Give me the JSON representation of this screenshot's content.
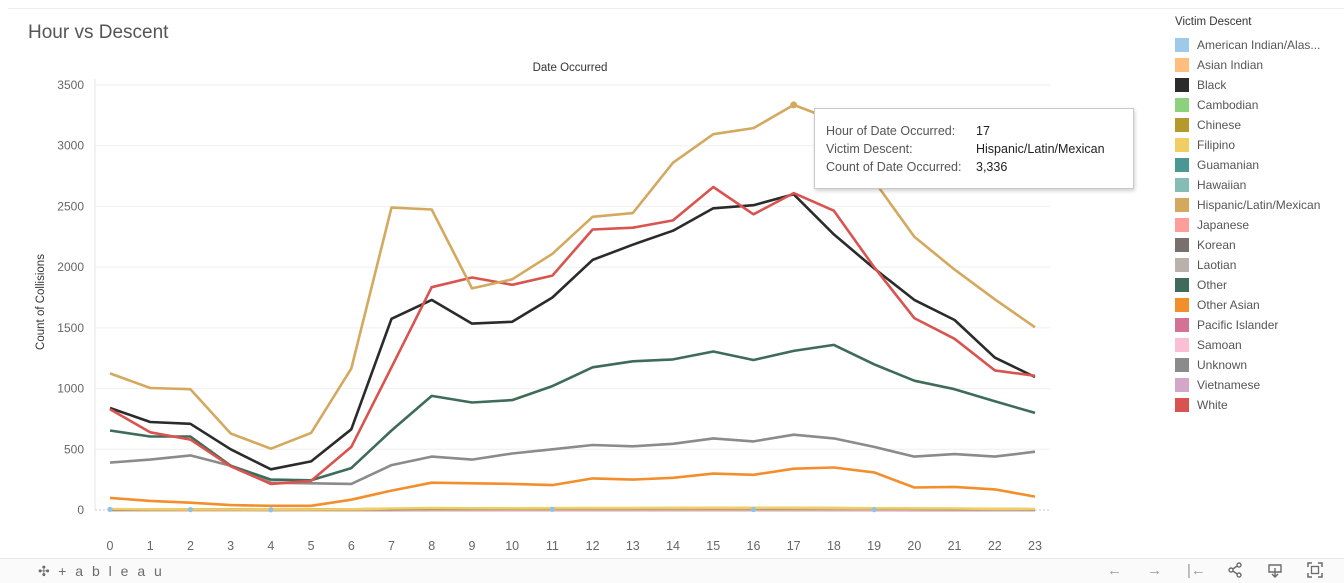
{
  "title": "Hour vs Descent",
  "tooltip": {
    "rows": [
      {
        "label": "Hour of Date Occurred:",
        "value": "17"
      },
      {
        "label": "Victim Descent:",
        "value": "Hispanic/Latin/Mexican"
      },
      {
        "label": "Count of Date Occurred:",
        "value": "3,336"
      }
    ]
  },
  "legend_title": "Victim Descent",
  "footer": {
    "brand": "+ a b l e a u",
    "icons": [
      "undo-icon",
      "redo-icon",
      "revert-icon",
      "share-icon",
      "download-icon",
      "fullscreen-icon"
    ]
  },
  "chart_data": {
    "type": "line",
    "header": "Date Occurred",
    "ylabel": "Count of Collisions",
    "xlabel": "",
    "x": [
      0,
      1,
      2,
      3,
      4,
      5,
      6,
      7,
      8,
      9,
      10,
      11,
      12,
      13,
      14,
      15,
      16,
      17,
      18,
      19,
      20,
      21,
      22,
      23
    ],
    "ylim": [
      0,
      3500
    ],
    "yticks": [
      0,
      500,
      1000,
      1500,
      2000,
      2500,
      3000,
      3500
    ],
    "gridlines": true,
    "legend_position": "right",
    "highlight": {
      "series": "Hispanic/Latin/Mexican",
      "x": 17,
      "y": 3336
    },
    "series": [
      {
        "name": "American Indian/Alaskan Native",
        "legend_label": "American Indian/Alas...",
        "color": "#9ecae9",
        "values": [
          5,
          4,
          3,
          3,
          2,
          2,
          3,
          4,
          4,
          4,
          4,
          5,
          5,
          5,
          4,
          5,
          4,
          5,
          4,
          3,
          3,
          3,
          2,
          2
        ]
      },
      {
        "name": "Asian Indian",
        "color": "#ffbe7d",
        "values": [
          3,
          3,
          2,
          2,
          2,
          2,
          3,
          4,
          5,
          5,
          5,
          6,
          6,
          6,
          6,
          6,
          6,
          6,
          6,
          5,
          5,
          4,
          4,
          3
        ]
      },
      {
        "name": "Black",
        "color": "#2b2b2b",
        "values": [
          840,
          725,
          710,
          500,
          335,
          400,
          665,
          1575,
          1730,
          1535,
          1550,
          1750,
          2060,
          2185,
          2300,
          2485,
          2510,
          2600,
          2270,
          1990,
          1730,
          1565,
          1255,
          1095
        ]
      },
      {
        "name": "Cambodian",
        "color": "#8cd17d",
        "values": [
          1,
          1,
          1,
          1,
          0,
          0,
          1,
          1,
          2,
          2,
          2,
          2,
          2,
          2,
          2,
          2,
          2,
          2,
          2,
          2,
          1,
          1,
          1,
          1
        ]
      },
      {
        "name": "Chinese",
        "color": "#b6992d",
        "values": [
          4,
          4,
          3,
          3,
          3,
          3,
          5,
          8,
          10,
          10,
          11,
          12,
          12,
          13,
          14,
          14,
          13,
          14,
          13,
          12,
          10,
          9,
          8,
          6
        ]
      },
      {
        "name": "Filipino",
        "color": "#f1ce63",
        "values": [
          8,
          6,
          5,
          4,
          3,
          4,
          6,
          12,
          16,
          14,
          14,
          15,
          16,
          16,
          17,
          18,
          17,
          18,
          16,
          14,
          13,
          12,
          10,
          8
        ]
      },
      {
        "name": "Guamanian",
        "color": "#499894",
        "values": [
          1,
          1,
          0,
          0,
          0,
          0,
          1,
          1,
          1,
          1,
          1,
          1,
          1,
          1,
          1,
          1,
          1,
          1,
          1,
          1,
          1,
          1,
          1,
          1
        ]
      },
      {
        "name": "Hawaiian",
        "color": "#86bcb6",
        "values": [
          1,
          1,
          0,
          0,
          0,
          0,
          1,
          1,
          1,
          1,
          1,
          1,
          1,
          1,
          1,
          1,
          1,
          1,
          1,
          1,
          1,
          1,
          1,
          1
        ]
      },
      {
        "name": "Hispanic/Latin/Mexican",
        "color": "#d4a95e",
        "values": [
          1125,
          1005,
          995,
          630,
          505,
          635,
          1165,
          2490,
          2475,
          1825,
          1900,
          2110,
          2415,
          2445,
          2860,
          3095,
          3145,
          3336,
          3210,
          2710,
          2250,
          1980,
          1735,
          1505
        ]
      },
      {
        "name": "Japanese",
        "color": "#ff9d9a",
        "values": [
          2,
          2,
          1,
          1,
          1,
          1,
          2,
          3,
          4,
          4,
          4,
          4,
          5,
          5,
          5,
          5,
          5,
          5,
          5,
          4,
          4,
          3,
          3,
          2
        ]
      },
      {
        "name": "Korean",
        "color": "#79706e",
        "values": [
          5,
          4,
          4,
          3,
          2,
          3,
          5,
          9,
          12,
          11,
          12,
          13,
          14,
          14,
          15,
          16,
          15,
          16,
          15,
          13,
          11,
          10,
          8,
          6
        ]
      },
      {
        "name": "Laotian",
        "color": "#bab0ac",
        "values": [
          0,
          0,
          0,
          0,
          0,
          0,
          0,
          1,
          1,
          1,
          1,
          1,
          1,
          1,
          1,
          1,
          1,
          1,
          1,
          1,
          1,
          0,
          0,
          0
        ]
      },
      {
        "name": "Other",
        "color": "#3e6b5a",
        "values": [
          655,
          605,
          605,
          365,
          250,
          245,
          345,
          655,
          940,
          885,
          905,
          1020,
          1175,
          1225,
          1240,
          1305,
          1235,
          1310,
          1360,
          1200,
          1065,
          995,
          895,
          800
        ]
      },
      {
        "name": "Other Asian",
        "color": "#f28e2b",
        "values": [
          100,
          75,
          60,
          40,
          35,
          35,
          85,
          160,
          225,
          220,
          215,
          205,
          260,
          250,
          265,
          300,
          290,
          340,
          350,
          310,
          185,
          190,
          170,
          110
        ]
      },
      {
        "name": "Pacific Islander",
        "color": "#d37295",
        "values": [
          1,
          1,
          1,
          0,
          0,
          0,
          1,
          1,
          2,
          2,
          2,
          2,
          2,
          2,
          2,
          2,
          2,
          2,
          2,
          2,
          1,
          1,
          1,
          1
        ]
      },
      {
        "name": "Samoan",
        "color": "#fabfd2",
        "values": [
          0,
          0,
          0,
          0,
          0,
          0,
          0,
          1,
          1,
          1,
          1,
          1,
          1,
          1,
          1,
          1,
          1,
          1,
          1,
          1,
          0,
          0,
          0,
          0
        ]
      },
      {
        "name": "Unknown",
        "color": "#8b8b8b",
        "values": [
          390,
          415,
          450,
          365,
          225,
          220,
          215,
          370,
          440,
          415,
          465,
          500,
          535,
          525,
          545,
          590,
          565,
          620,
          590,
          520,
          440,
          460,
          440,
          480
        ]
      },
      {
        "name": "Vietnamese",
        "color": "#d4a6c8",
        "values": [
          3,
          2,
          2,
          2,
          1,
          2,
          3,
          5,
          6,
          6,
          6,
          7,
          7,
          7,
          8,
          8,
          7,
          8,
          7,
          6,
          5,
          5,
          4,
          3
        ]
      },
      {
        "name": "White",
        "color": "#d9534f",
        "values": [
          830,
          640,
          580,
          360,
          215,
          240,
          520,
          1175,
          1835,
          1915,
          1855,
          1930,
          2310,
          2325,
          2385,
          2660,
          2435,
          2610,
          2465,
          2000,
          1580,
          1410,
          1150,
          1105
        ]
      }
    ]
  }
}
